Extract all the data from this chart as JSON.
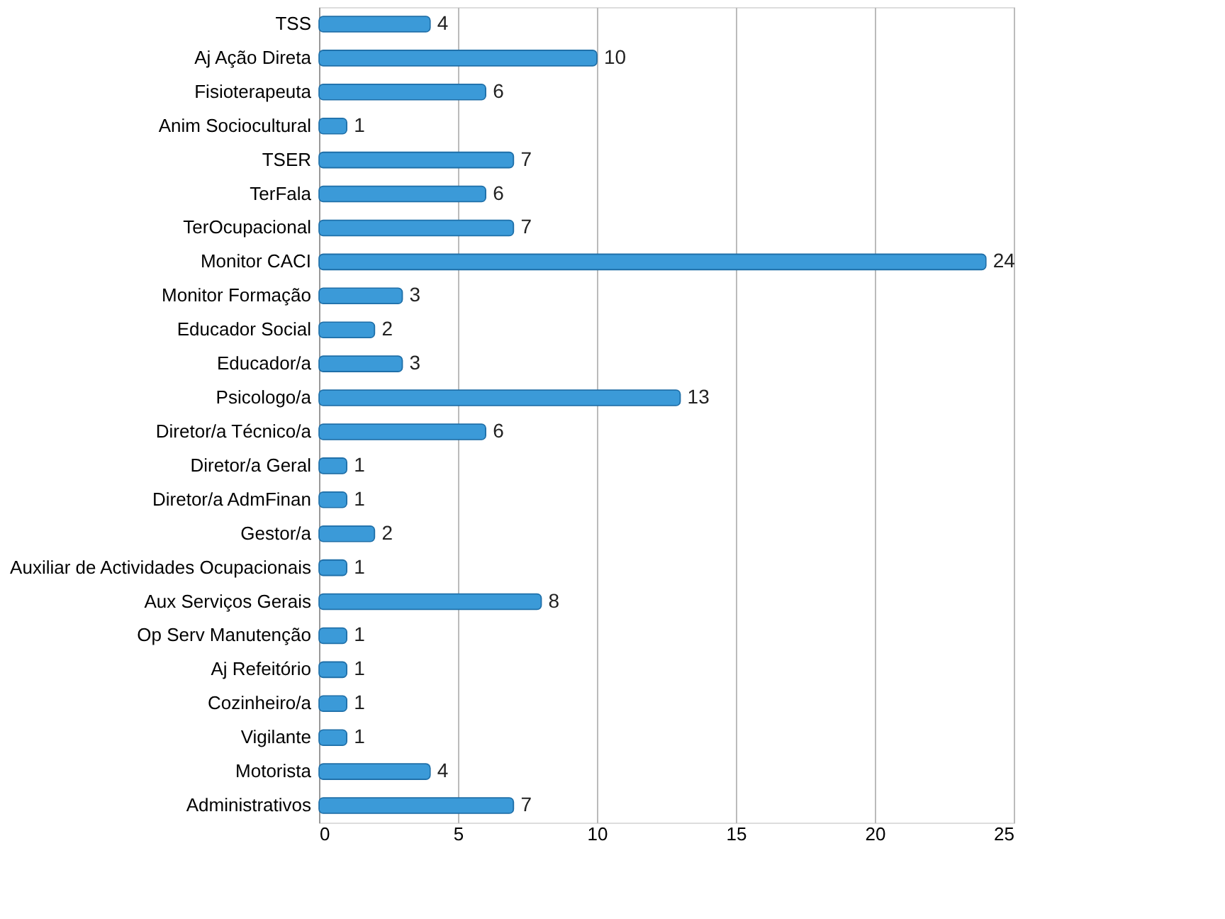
{
  "chart_data": {
    "type": "bar",
    "orientation": "horizontal",
    "categories": [
      "TSS",
      "Aj Ação Direta",
      "Fisioterapeuta",
      "Anim Sociocultural",
      "TSER",
      "TerFala",
      "TerOcupacional",
      "Monitor CACI",
      "Monitor Formação",
      "Educador Social",
      "Educador/a",
      "Psicologo/a",
      "Diretor/a Técnico/a",
      "Diretor/a Geral",
      "Diretor/a AdmFinan",
      "Gestor/a",
      "Auxiliar de Actividades Ocupacionais",
      "Aux Serviços Gerais",
      "Op Serv Manutenção",
      "Aj Refeitório",
      "Cozinheiro/a",
      "Vigilante",
      "Motorista",
      "Administrativos"
    ],
    "values": [
      4,
      10,
      6,
      1,
      7,
      6,
      7,
      24,
      3,
      2,
      3,
      13,
      6,
      1,
      1,
      2,
      1,
      8,
      1,
      1,
      1,
      1,
      4,
      7
    ],
    "color": "#3b9ad8",
    "xlim": [
      0,
      25
    ],
    "xticks": [
      0,
      5,
      10,
      15,
      20,
      25
    ],
    "grid": "x",
    "data_labels": true
  }
}
